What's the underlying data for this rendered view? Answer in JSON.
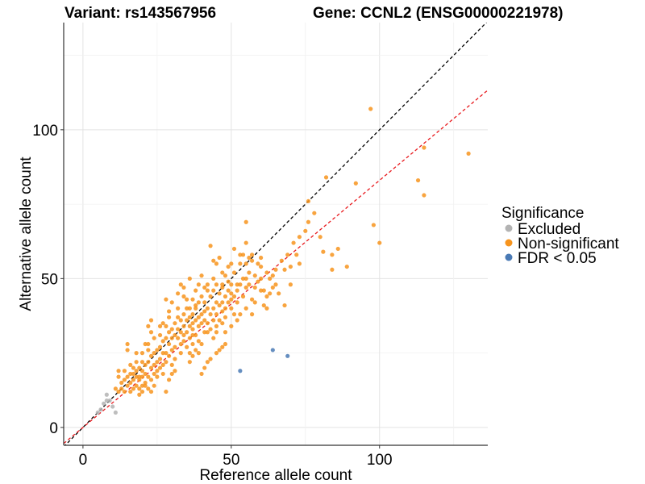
{
  "chart_data": {
    "type": "scatter",
    "title_left": "Variant: rs143567956",
    "title_right": "Gene: CCNL2 (ENSG00000221978)",
    "xlabel": "Reference allele count",
    "ylabel": "Alternative allele count",
    "xlim": [
      -6.5,
      136.5
    ],
    "ylim": [
      -6,
      136
    ],
    "x_ticks": [
      0,
      50,
      100
    ],
    "y_ticks": [
      0,
      50,
      100
    ],
    "grid": true,
    "legend": {
      "title": "Significance",
      "position": "right",
      "entries": [
        {
          "label": "Excluded",
          "color": "#b3b3b3"
        },
        {
          "label": "Non-significant",
          "color": "#f7941d"
        },
        {
          "label": "FDR < 0.05",
          "color": "#4a7ab5"
        }
      ]
    },
    "reference_lines": [
      {
        "style": "dashed",
        "color": "#000000",
        "slope": 1,
        "intercept": 0
      },
      {
        "style": "dashed",
        "color": "#e8191d",
        "slope": 0.83,
        "intercept": 0
      }
    ],
    "series": [
      {
        "name": "Excluded",
        "color": "#b3b3b3",
        "points": [
          [
            8,
            11
          ],
          [
            11,
            5
          ],
          [
            8,
            9
          ],
          [
            7,
            8
          ],
          [
            10,
            7
          ],
          [
            5,
            5
          ],
          [
            9,
            9
          ],
          [
            6,
            6
          ]
        ]
      },
      {
        "name": "FDR < 0.05",
        "color": "#4a7ab5",
        "points": [
          [
            53,
            19
          ],
          [
            64,
            26
          ],
          [
            69,
            24
          ]
        ]
      },
      {
        "name": "Non-significant",
        "color": "#f7941d",
        "points": [
          [
            97,
            107
          ],
          [
            130,
            92
          ],
          [
            115,
            94
          ],
          [
            82,
            84
          ],
          [
            92,
            82
          ],
          [
            113,
            83
          ],
          [
            115,
            78
          ],
          [
            98,
            68
          ],
          [
            100,
            62
          ],
          [
            89,
            54
          ],
          [
            84,
            53
          ],
          [
            80,
            64
          ],
          [
            81,
            59
          ],
          [
            84,
            58
          ],
          [
            86,
            60
          ],
          [
            76,
            69
          ],
          [
            76,
            76
          ],
          [
            78,
            72
          ],
          [
            73,
            55
          ],
          [
            72,
            58
          ],
          [
            73,
            64
          ],
          [
            75,
            66
          ],
          [
            71,
            62
          ],
          [
            70,
            54
          ],
          [
            69,
            58
          ],
          [
            70,
            48
          ],
          [
            68,
            53
          ],
          [
            67,
            56
          ],
          [
            68,
            41
          ],
          [
            66,
            45
          ],
          [
            65,
            53
          ],
          [
            65,
            48
          ],
          [
            64,
            51
          ],
          [
            64,
            47
          ],
          [
            63,
            50
          ],
          [
            62,
            52
          ],
          [
            62,
            40
          ],
          [
            61,
            41
          ],
          [
            61,
            46
          ],
          [
            60,
            54
          ],
          [
            60,
            57
          ],
          [
            60,
            46
          ],
          [
            59,
            49
          ],
          [
            59,
            55
          ],
          [
            58,
            47
          ],
          [
            58,
            51
          ],
          [
            57,
            43
          ],
          [
            57,
            56
          ],
          [
            56,
            48
          ],
          [
            56,
            52
          ],
          [
            55,
            47
          ],
          [
            55,
            69
          ],
          [
            55,
            50
          ],
          [
            55,
            62
          ],
          [
            54,
            58
          ],
          [
            54,
            44
          ],
          [
            53,
            48
          ],
          [
            53,
            55
          ],
          [
            52,
            42
          ],
          [
            52,
            46
          ],
          [
            51,
            38
          ],
          [
            51,
            44
          ],
          [
            51,
            52
          ],
          [
            50,
            40
          ],
          [
            50,
            45
          ],
          [
            50,
            48
          ],
          [
            50,
            55
          ],
          [
            49,
            42
          ],
          [
            49,
            46
          ],
          [
            49,
            49
          ],
          [
            48,
            37
          ],
          [
            48,
            40
          ],
          [
            48,
            44
          ],
          [
            48,
            51
          ],
          [
            47,
            35
          ],
          [
            47,
            39
          ],
          [
            47,
            47
          ],
          [
            47,
            52
          ],
          [
            46,
            36
          ],
          [
            46,
            41
          ],
          [
            46,
            45
          ],
          [
            46,
            57
          ],
          [
            45,
            34
          ],
          [
            45,
            38
          ],
          [
            45,
            42
          ],
          [
            45,
            48
          ],
          [
            45,
            55
          ],
          [
            44,
            30
          ],
          [
            44,
            36
          ],
          [
            44,
            40
          ],
          [
            44,
            46
          ],
          [
            44,
            50
          ],
          [
            43,
            33
          ],
          [
            43,
            38
          ],
          [
            43,
            44
          ],
          [
            43,
            61
          ],
          [
            42,
            35
          ],
          [
            42,
            40
          ],
          [
            42,
            46
          ],
          [
            42,
            48
          ],
          [
            41,
            32
          ],
          [
            41,
            36
          ],
          [
            41,
            39
          ],
          [
            41,
            42
          ],
          [
            40,
            28
          ],
          [
            40,
            35
          ],
          [
            40,
            38
          ],
          [
            40,
            44
          ],
          [
            40,
            51
          ],
          [
            39,
            29
          ],
          [
            39,
            34
          ],
          [
            39,
            37
          ],
          [
            39,
            42
          ],
          [
            38,
            31
          ],
          [
            38,
            36
          ],
          [
            38,
            40
          ],
          [
            38,
            46
          ],
          [
            37,
            28
          ],
          [
            37,
            33
          ],
          [
            37,
            35
          ],
          [
            37,
            38
          ],
          [
            37,
            43
          ],
          [
            36,
            25
          ],
          [
            36,
            30
          ],
          [
            36,
            34
          ],
          [
            36,
            37
          ],
          [
            36,
            50
          ],
          [
            35,
            27
          ],
          [
            35,
            32
          ],
          [
            35,
            36
          ],
          [
            35,
            40
          ],
          [
            34,
            29
          ],
          [
            34,
            31
          ],
          [
            34,
            34
          ],
          [
            34,
            38
          ],
          [
            34,
            44
          ],
          [
            33,
            25
          ],
          [
            33,
            28
          ],
          [
            33,
            32
          ],
          [
            33,
            36
          ],
          [
            33,
            48
          ],
          [
            32,
            30
          ],
          [
            32,
            33
          ],
          [
            32,
            37
          ],
          [
            32,
            40
          ],
          [
            31,
            23
          ],
          [
            31,
            27
          ],
          [
            31,
            31
          ],
          [
            31,
            35
          ],
          [
            30,
            21
          ],
          [
            30,
            26
          ],
          [
            30,
            30
          ],
          [
            30,
            33
          ],
          [
            30,
            42
          ],
          [
            29,
            24
          ],
          [
            29,
            28
          ],
          [
            29,
            32
          ],
          [
            29,
            37
          ],
          [
            28,
            22
          ],
          [
            28,
            25
          ],
          [
            28,
            30
          ],
          [
            28,
            34
          ],
          [
            28,
            43
          ],
          [
            27,
            18
          ],
          [
            27,
            21
          ],
          [
            27,
            25
          ],
          [
            27,
            29
          ],
          [
            26,
            20
          ],
          [
            26,
            23
          ],
          [
            26,
            27
          ],
          [
            26,
            31
          ],
          [
            25,
            17
          ],
          [
            25,
            19
          ],
          [
            25,
            22
          ],
          [
            25,
            26
          ],
          [
            24,
            14
          ],
          [
            24,
            18
          ],
          [
            24,
            21
          ],
          [
            24,
            25
          ],
          [
            23,
            16
          ],
          [
            23,
            20
          ],
          [
            23,
            24
          ],
          [
            23,
            32
          ],
          [
            23,
            36
          ],
          [
            22,
            13
          ],
          [
            22,
            17
          ],
          [
            22,
            22
          ],
          [
            22,
            26
          ],
          [
            22,
            34
          ],
          [
            21,
            15
          ],
          [
            21,
            18
          ],
          [
            21,
            21
          ],
          [
            21,
            28
          ],
          [
            20,
            12
          ],
          [
            20,
            14
          ],
          [
            20,
            17
          ],
          [
            20,
            19
          ],
          [
            20,
            22
          ],
          [
            19,
            11
          ],
          [
            19,
            13
          ],
          [
            19,
            16
          ],
          [
            19,
            20
          ],
          [
            18,
            14
          ],
          [
            18,
            17
          ],
          [
            18,
            19
          ],
          [
            18,
            25
          ],
          [
            17,
            13
          ],
          [
            17,
            16
          ],
          [
            17,
            18
          ],
          [
            16,
            12
          ],
          [
            16,
            15
          ],
          [
            16,
            21
          ],
          [
            15,
            14
          ],
          [
            15,
            17
          ],
          [
            15,
            26
          ],
          [
            15,
            28
          ],
          [
            14,
            12
          ],
          [
            14,
            16
          ],
          [
            14,
            19
          ],
          [
            13,
            13
          ],
          [
            13,
            15
          ],
          [
            12,
            12
          ],
          [
            12,
            17
          ],
          [
            12,
            19
          ],
          [
            11,
            13
          ],
          [
            35,
            43
          ],
          [
            36,
            40
          ],
          [
            38,
            41
          ],
          [
            37,
            31
          ],
          [
            42,
            32
          ],
          [
            45,
            32
          ],
          [
            48,
            32
          ],
          [
            50,
            34
          ],
          [
            52,
            36
          ],
          [
            53,
            38
          ],
          [
            55,
            40
          ],
          [
            57,
            38
          ],
          [
            58,
            42
          ],
          [
            62,
            44
          ],
          [
            47,
            42
          ],
          [
            50,
            43
          ],
          [
            54,
            50
          ],
          [
            56,
            57
          ],
          [
            60,
            50
          ],
          [
            63,
            45
          ],
          [
            51,
            60
          ],
          [
            53,
            58
          ],
          [
            55,
            55
          ],
          [
            57,
            58
          ],
          [
            44,
            56
          ],
          [
            47,
            48
          ],
          [
            49,
            54
          ],
          [
            52,
            48
          ],
          [
            39,
            48
          ],
          [
            41,
            47
          ],
          [
            32,
            45
          ],
          [
            34,
            47
          ],
          [
            29,
            39
          ],
          [
            27,
            35
          ],
          [
            26,
            34
          ],
          [
            24,
            30
          ],
          [
            22,
            28
          ],
          [
            20,
            25
          ],
          [
            18,
            22
          ],
          [
            16,
            18
          ],
          [
            17,
            20
          ],
          [
            19,
            17
          ],
          [
            21,
            14
          ],
          [
            23,
            12
          ],
          [
            28,
            12
          ],
          [
            29,
            16
          ],
          [
            30,
            18
          ],
          [
            31,
            19
          ],
          [
            40,
            18
          ],
          [
            41,
            20
          ],
          [
            42,
            22
          ],
          [
            43,
            23
          ],
          [
            45,
            25
          ],
          [
            46,
            26
          ],
          [
            47,
            27
          ],
          [
            48,
            28
          ],
          [
            36,
            22
          ],
          [
            37,
            24
          ],
          [
            38,
            26
          ],
          [
            39,
            25
          ]
        ]
      }
    ]
  }
}
